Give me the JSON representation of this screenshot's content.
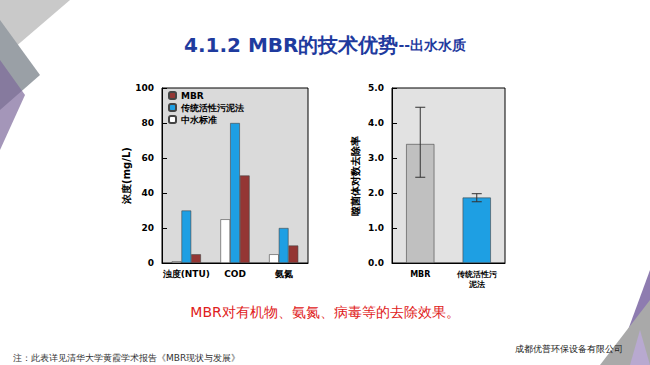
{
  "title": "4.1.2 MBR的技术优势",
  "subtitle": "--出水水质",
  "chart_data": [
    {
      "type": "bar",
      "categories": [
        "浊度(NTU)",
        "COD",
        "氨氮"
      ],
      "ylabel": "浓度(mg/L)",
      "ylim": [
        0,
        100
      ],
      "yticks": [
        0,
        20,
        40,
        60,
        80,
        100
      ],
      "grid": false,
      "legend": "upper left",
      "series": [
        {
          "name": "MBR",
          "color": "#943634",
          "values": [
            5,
            50,
            10
          ]
        },
        {
          "name": "传统活性污泥法",
          "color": "#1e9fe3",
          "values": [
            30,
            80,
            20
          ]
        },
        {
          "name": "中水标准",
          "color": "#ffffff",
          "values": [
            1,
            25,
            5
          ]
        }
      ]
    },
    {
      "type": "bar",
      "categories": [
        "MBR",
        "传统活性污泥法"
      ],
      "ylabel": "噬菌体对数去除率",
      "values": [
        3.4,
        1.87
      ],
      "colors": [
        "#c0c0c0",
        "#1e9fe3"
      ],
      "error_low": [
        2.45,
        1.75
      ],
      "error_high": [
        4.45,
        1.98
      ],
      "ylim": [
        0,
        5
      ],
      "yticks": [
        {
          "value": 0,
          "label": "0.0"
        },
        {
          "value": 1,
          "label": "1.0"
        },
        {
          "value": 2,
          "label": "2.0"
        },
        {
          "value": 3,
          "label": "3.0"
        },
        {
          "value": 4,
          "label": "4.0"
        },
        {
          "value": 5,
          "label": "5.0"
        }
      ],
      "grid": false
    }
  ],
  "caption": "MBR对有机物、氨氮、病毒等的去除效果。",
  "note": "注：此表详见清华大学黄霞学术报告《MBR现状与发展》",
  "company": "成都优普环保设备有限公司"
}
